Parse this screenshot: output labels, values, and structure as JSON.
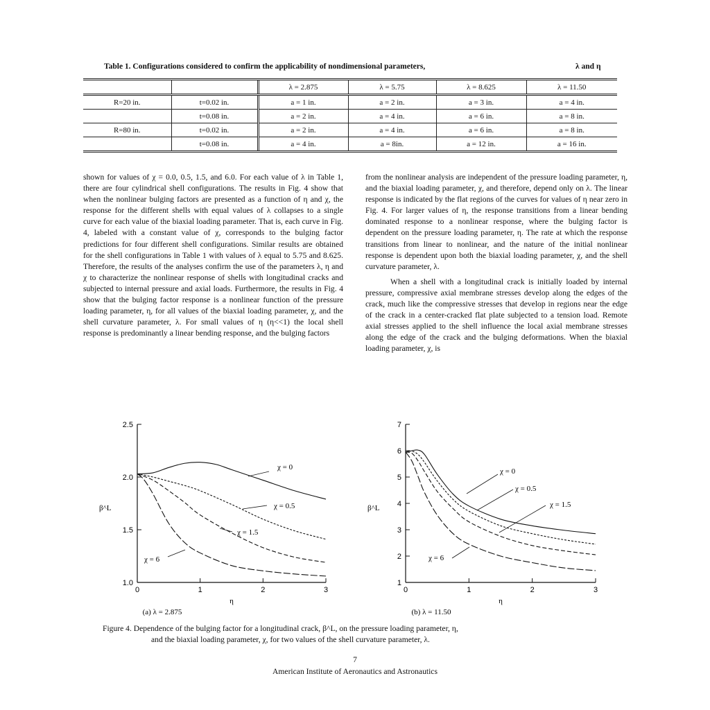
{
  "table": {
    "caption": "Table 1.  Configurations considered to confirm the applicability of nondimensional parameters,",
    "caption_tail": "λ and  η",
    "header": [
      "",
      "",
      "λ = 2.875",
      "λ = 5.75",
      "λ = 8.625",
      "λ = 11.50"
    ],
    "rows": [
      [
        "R=20 in.",
        "t=0.02 in.",
        "a = 1 in.",
        "a = 2 in.",
        "a = 3 in.",
        "a = 4 in."
      ],
      [
        "",
        "t=0.08 in.",
        "a = 2 in.",
        "a = 4 in.",
        "a = 6 in.",
        "a = 8 in."
      ],
      [
        "R=80 in.",
        "t=0.02 in.",
        "a = 2 in.",
        "a = 4 in.",
        "a = 6 in.",
        "a = 8 in."
      ],
      [
        "",
        "t=0.08 in.",
        "a = 4 in.",
        "a = 8in.",
        "a = 12 in.",
        "a = 16 in."
      ]
    ]
  },
  "text": {
    "left_col": "shown for values of χ = 0.0, 0.5, 1.5, and 6.0.  For each value of λ in Table 1, there are four cylindrical shell configurations.  The results in Fig. 4 show that when the nonlinear bulging factors are presented as a function of η and χ, the response for the different shells with equal values of λ collapses to a single curve for each value of the biaxial loading parameter.  That is, each curve in Fig. 4, labeled with a constant value of χ, corresponds to the bulging factor predictions for four different shell configurations.  Similar results are obtained for the shell configurations in Table 1 with values of λ equal to 5.75 and 8.625.  Therefore, the results of the analyses confirm the use of the parameters λ, η and χ to characterize the nonlinear response of shells with longitudinal cracks and subjected to internal pressure and axial loads.  Furthermore, the results in Fig. 4 show that the bulging factor response is a nonlinear function of the pressure loading parameter, η, for all values of the biaxial loading parameter, χ, and the shell curvature parameter, λ.  For small values of η (η<<1) the local shell response is predominantly a linear bending response, and the bulging factors",
    "right_col_p1": "from the nonlinear analysis are independent of the pressure loading parameter, η, and the biaxial loading parameter, χ, and therefore, depend only on λ.  The linear response is indicated by the flat regions of the curves for values of η near zero in Fig. 4.  For larger values of η, the response transitions from a linear bending dominated response to a nonlinear response, where the bulging factor is dependent on the pressure loading parameter, η.  The rate at which the response transitions from linear to nonlinear, and the nature of the initial nonlinear response is dependent upon both the biaxial loading parameter, χ, and the shell curvature parameter, λ.",
    "right_col_p2": "When a shell with a longitudinal crack is initially loaded by internal pressure, compressive axial membrane stresses develop along the edges of the crack, much like the compressive stresses that develop in regions near the edge of the crack in a center-cracked flat plate subjected to a tension load.  Remote axial stresses applied to the shell influence the local axial membrane stresses along the edge of the crack and the bulging deformations.  When the biaxial loading parameter, χ, is"
  },
  "figure": {
    "caption_line1": "Figure 4.  Dependence of the bulging factor for a longitudinal crack, β^L, on the pressure loading parameter, η,",
    "caption_line2": "and the biaxial loading parameter, χ, for two values of the shell curvature parameter, λ."
  },
  "chart_data": [
    {
      "type": "line",
      "title": "(a)  λ = 2.875",
      "xlabel": "η",
      "ylabel": "β^L",
      "xlim": [
        0,
        3
      ],
      "ylim": [
        1.0,
        2.5
      ],
      "xticks": [
        "0",
        "1",
        "2",
        "3"
      ],
      "yticks": [
        "1.0",
        "1.5",
        "2.0",
        "2.5"
      ],
      "grid": false,
      "series": [
        {
          "name": "χ = 0",
          "style": "solid",
          "x": [
            0,
            0.25,
            0.5,
            0.75,
            1.0,
            1.25,
            1.5,
            2.0,
            2.5,
            3.0
          ],
          "y": [
            2.03,
            2.04,
            2.09,
            2.13,
            2.14,
            2.12,
            2.07,
            1.97,
            1.87,
            1.79
          ]
        },
        {
          "name": "χ = 0.5",
          "style": "short-dash",
          "x": [
            0,
            0.25,
            0.5,
            0.75,
            1.0,
            1.5,
            2.0,
            2.5,
            3.0
          ],
          "y": [
            2.03,
            2.0,
            1.96,
            1.92,
            1.87,
            1.74,
            1.6,
            1.49,
            1.41
          ]
        },
        {
          "name": "χ = 1.5",
          "style": "dash",
          "x": [
            0,
            0.25,
            0.5,
            0.75,
            1.0,
            1.5,
            2.0,
            2.5,
            3.0
          ],
          "y": [
            2.03,
            1.97,
            1.87,
            1.76,
            1.64,
            1.47,
            1.33,
            1.24,
            1.19
          ]
        },
        {
          "name": "χ = 6",
          "style": "long-dash",
          "x": [
            0,
            0.1,
            0.25,
            0.5,
            0.75,
            1.0,
            1.5,
            2.0,
            2.5,
            3.0
          ],
          "y": [
            2.03,
            1.98,
            1.84,
            1.56,
            1.38,
            1.28,
            1.16,
            1.11,
            1.08,
            1.06
          ]
        }
      ]
    },
    {
      "type": "line",
      "title": "(b)  λ = 11.50",
      "xlabel": "η",
      "ylabel": "β^L",
      "xlim": [
        0,
        3
      ],
      "ylim": [
        1,
        7
      ],
      "xticks": [
        "0",
        "1",
        "2",
        "3"
      ],
      "yticks": [
        "1",
        "2",
        "3",
        "4",
        "5",
        "6",
        "7"
      ],
      "grid": false,
      "series": [
        {
          "name": "χ = 0",
          "style": "solid",
          "x": [
            0,
            0.1,
            0.2,
            0.3,
            0.5,
            0.75,
            1.0,
            1.5,
            2.0,
            2.5,
            3.0
          ],
          "y": [
            5.95,
            6.0,
            6.02,
            5.85,
            5.1,
            4.35,
            3.9,
            3.4,
            3.15,
            2.98,
            2.85
          ]
        },
        {
          "name": "χ = 0.5",
          "style": "short-dash",
          "x": [
            0,
            0.1,
            0.2,
            0.3,
            0.5,
            0.75,
            1.0,
            1.5,
            2.0,
            2.5,
            3.0
          ],
          "y": [
            5.95,
            5.98,
            5.85,
            5.55,
            4.85,
            4.15,
            3.7,
            3.15,
            2.85,
            2.62,
            2.45
          ]
        },
        {
          "name": "χ = 1.5",
          "style": "dash",
          "x": [
            0,
            0.1,
            0.2,
            0.3,
            0.5,
            0.75,
            1.0,
            1.5,
            2.0,
            2.5,
            3.0
          ],
          "y": [
            5.95,
            5.9,
            5.6,
            5.2,
            4.45,
            3.8,
            3.3,
            2.75,
            2.4,
            2.2,
            2.05
          ]
        },
        {
          "name": "χ = 6",
          "style": "long-dash",
          "x": [
            0,
            0.1,
            0.2,
            0.3,
            0.5,
            0.75,
            1.0,
            1.5,
            2.0,
            2.5,
            3.0
          ],
          "y": [
            5.95,
            5.6,
            5.0,
            4.4,
            3.55,
            2.85,
            2.45,
            2.0,
            1.75,
            1.55,
            1.45
          ]
        }
      ]
    }
  ],
  "page_number": "7",
  "footer": "American Institute of Aeronautics and Astronautics"
}
